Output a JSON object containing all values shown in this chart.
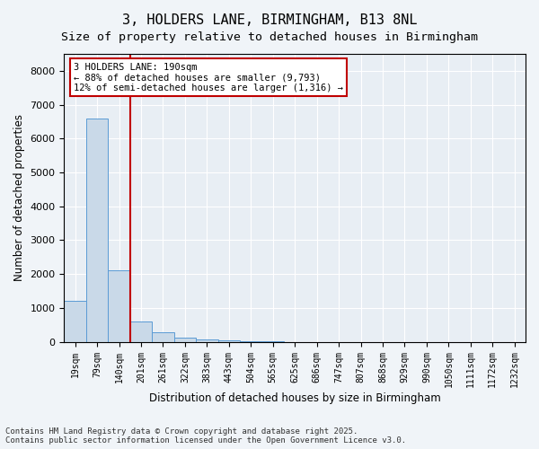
{
  "title_line1": "3, HOLDERS LANE, BIRMINGHAM, B13 8NL",
  "title_line2": "Size of property relative to detached houses in Birmingham",
  "xlabel": "Distribution of detached houses by size in Birmingham",
  "ylabel": "Number of detached properties",
  "categories": [
    "19sqm",
    "79sqm",
    "140sqm",
    "201sqm",
    "261sqm",
    "322sqm",
    "383sqm",
    "443sqm",
    "504sqm",
    "565sqm",
    "625sqm",
    "686sqm",
    "747sqm",
    "807sqm",
    "868sqm",
    "929sqm",
    "990sqm",
    "1050sqm",
    "1111sqm",
    "1172sqm",
    "1232sqm"
  ],
  "values": [
    1200,
    6600,
    2100,
    600,
    270,
    120,
    70,
    40,
    10,
    5,
    2,
    1,
    1,
    0,
    0,
    0,
    0,
    0,
    0,
    0,
    0
  ],
  "bar_color": "#c9d9e8",
  "bar_edge_color": "#5b9bd5",
  "vline_x": 3,
  "vline_color": "#c00000",
  "annotation_text": "3 HOLDERS LANE: 190sqm\n← 88% of detached houses are smaller (9,793)\n12% of semi-detached houses are larger (1,316) →",
  "annotation_box_color": "#c00000",
  "ylim": [
    0,
    8500
  ],
  "yticks": [
    0,
    1000,
    2000,
    3000,
    4000,
    5000,
    6000,
    7000,
    8000
  ],
  "footer_line1": "Contains HM Land Registry data © Crown copyright and database right 2025.",
  "footer_line2": "Contains public sector information licensed under the Open Government Licence v3.0.",
  "bg_color": "#e8eef4",
  "plot_bg_color": "#e8eef4"
}
